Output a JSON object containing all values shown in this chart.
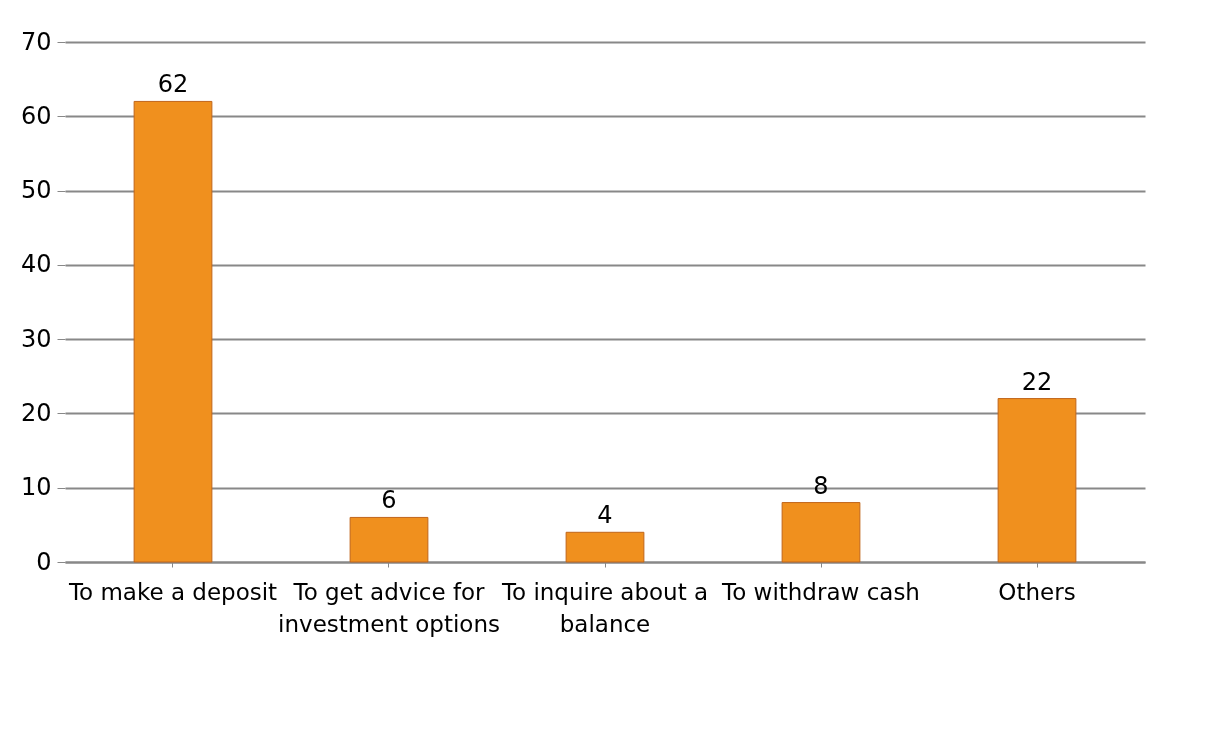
{
  "chart_data": {
    "type": "bar",
    "categories": [
      "To make a deposit",
      "To get advice for investment options",
      "To inquire about a balance",
      "To withdraw cash",
      "Others"
    ],
    "values": [
      62,
      6,
      4,
      8,
      22
    ],
    "color": "#f0901e",
    "ylim": [
      0,
      70
    ],
    "yticks": [
      0,
      10,
      20,
      30,
      40,
      50,
      60,
      70
    ],
    "grid": "y",
    "data_labels": true
  }
}
